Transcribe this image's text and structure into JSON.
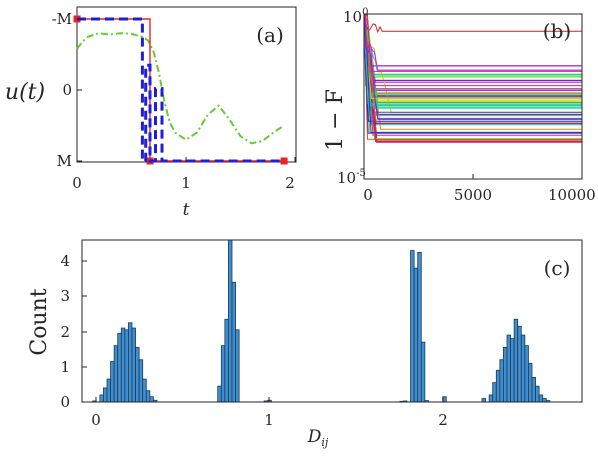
{
  "chart_data": [
    {
      "panel": "(a)",
      "type": "line",
      "ylabel": "u(t)",
      "xlabel": "t",
      "xlim": [
        0,
        2
      ],
      "xticks": [
        0,
        1,
        2
      ],
      "ylim": [
        -1,
        1
      ],
      "yticklabels": [
        "-M",
        "0",
        "M"
      ],
      "series": [
        {
          "style": "solid",
          "color": "#ee2222",
          "marker": "square",
          "x": [
            0,
            0.67,
            0.67,
            1.9
          ],
          "y": [
            1,
            1,
            -1,
            -1
          ]
        },
        {
          "style": "dashed",
          "color": "#1f1fd6",
          "x": [
            0,
            0.6,
            0.6,
            0.63,
            0.63,
            0.67,
            0.67,
            0.72,
            0.72,
            0.78,
            0.78,
            1.9
          ],
          "y": [
            1,
            1,
            -1,
            -1,
            0.35,
            0.35,
            -1,
            -1,
            0.02,
            0.02,
            -1,
            -1
          ]
        },
        {
          "style": "dashdot",
          "color": "#66cc33",
          "x": [
            0,
            0.05,
            0.1,
            0.2,
            0.3,
            0.4,
            0.5,
            0.6,
            0.65,
            0.7,
            0.75,
            0.8,
            0.85,
            0.9,
            1.0,
            1.1,
            1.2,
            1.3,
            1.4,
            1.5,
            1.6,
            1.7,
            1.8,
            1.9
          ],
          "y": [
            0.58,
            0.68,
            0.75,
            0.8,
            0.78,
            0.8,
            0.79,
            0.75,
            0.7,
            0.55,
            0.25,
            -0.15,
            -0.45,
            -0.6,
            -0.7,
            -0.6,
            -0.35,
            -0.22,
            -0.42,
            -0.65,
            -0.75,
            -0.72,
            -0.6,
            -0.5
          ]
        }
      ]
    },
    {
      "panel": "(b)",
      "type": "line",
      "ylabel": "1 − F",
      "xlim": [
        0,
        10000
      ],
      "xticks": [
        0,
        5000,
        10000
      ],
      "yscale": "log",
      "ylim": [
        1e-05,
        1
      ],
      "ytick_labels": [
        "10⁰",
        "10⁻⁵"
      ],
      "plateau_example": 0.3,
      "n_curves": 60
    },
    {
      "panel": "(c)",
      "type": "bar",
      "xlabel": "D_ij",
      "ylabel": "Count",
      "xlim": [
        -0.05,
        2.75
      ],
      "xticks": [
        0,
        1,
        2
      ],
      "ylim": [
        0,
        4.6
      ],
      "yticks": [
        0,
        1,
        2,
        3,
        4
      ],
      "bar_width": 0.02,
      "bars": [
        [
          0.02,
          0.03
        ],
        [
          0.06,
          0.2
        ],
        [
          0.08,
          0.4
        ],
        [
          0.1,
          0.65
        ],
        [
          0.12,
          1.15
        ],
        [
          0.14,
          1.6
        ],
        [
          0.16,
          1.95
        ],
        [
          0.18,
          2.1
        ],
        [
          0.2,
          2.05
        ],
        [
          0.22,
          2.25
        ],
        [
          0.24,
          2.1
        ],
        [
          0.26,
          1.55
        ],
        [
          0.28,
          1.2
        ],
        [
          0.3,
          0.65
        ],
        [
          0.32,
          0.32
        ],
        [
          0.34,
          0.15
        ],
        [
          0.36,
          0.05
        ],
        [
          0.72,
          0.45
        ],
        [
          0.74,
          1.6
        ],
        [
          0.76,
          2.35
        ],
        [
          0.78,
          4.7
        ],
        [
          0.8,
          3.4
        ],
        [
          0.82,
          2.05
        ],
        [
          0.98,
          0.03
        ],
        [
          1.0,
          0.05
        ],
        [
          1.74,
          0.02
        ],
        [
          1.76,
          0.03
        ],
        [
          1.8,
          4.3
        ],
        [
          1.82,
          3.8
        ],
        [
          1.84,
          4.25
        ],
        [
          1.86,
          1.7
        ],
        [
          1.88,
          0.04
        ],
        [
          1.98,
          0.15
        ],
        [
          2.2,
          0.1
        ],
        [
          2.24,
          0.2
        ],
        [
          2.26,
          0.55
        ],
        [
          2.28,
          0.9
        ],
        [
          2.3,
          1.2
        ],
        [
          2.32,
          1.55
        ],
        [
          2.34,
          1.9
        ],
        [
          2.36,
          1.8
        ],
        [
          2.38,
          2.35
        ],
        [
          2.4,
          2.15
        ],
        [
          2.42,
          1.9
        ],
        [
          2.44,
          1.6
        ],
        [
          2.46,
          1.1
        ],
        [
          2.48,
          0.7
        ],
        [
          2.5,
          0.45
        ],
        [
          2.52,
          0.2
        ],
        [
          2.54,
          0.1
        ],
        [
          2.56,
          0.04
        ]
      ]
    }
  ],
  "labels": {
    "a_panel": "(a)",
    "a_ylabel": "u(t)",
    "a_xlabel": "t",
    "a_ytick_top": "-M",
    "a_ytick_mid": "0",
    "a_ytick_bot": "M",
    "a_xtick_0": "0",
    "a_xtick_1": "1",
    "a_xtick_2": "2",
    "b_panel": "(b)",
    "b_ylabel": "1 − F",
    "b_ytick_top_base": "10",
    "b_ytick_top_exp": "0",
    "b_ytick_bot_base": "10",
    "b_ytick_bot_exp": "-5",
    "b_xtick_0": "0",
    "b_xtick_1": "5000",
    "b_xtick_2": "10000",
    "c_panel": "(c)",
    "c_ylabel": "Count",
    "c_xlabel_main": "D",
    "c_xlabel_sub": "ij",
    "c_ytick_0": "0",
    "c_ytick_1": "1",
    "c_ytick_2": "2",
    "c_ytick_3": "3",
    "c_ytick_4": "4",
    "c_xtick_0": "0",
    "c_xtick_1": "1",
    "c_xtick_2": "2"
  },
  "colors": {
    "bar_fill": "#3f8fd0",
    "bar_edge": "#1b3a57",
    "axis": "#262626"
  }
}
